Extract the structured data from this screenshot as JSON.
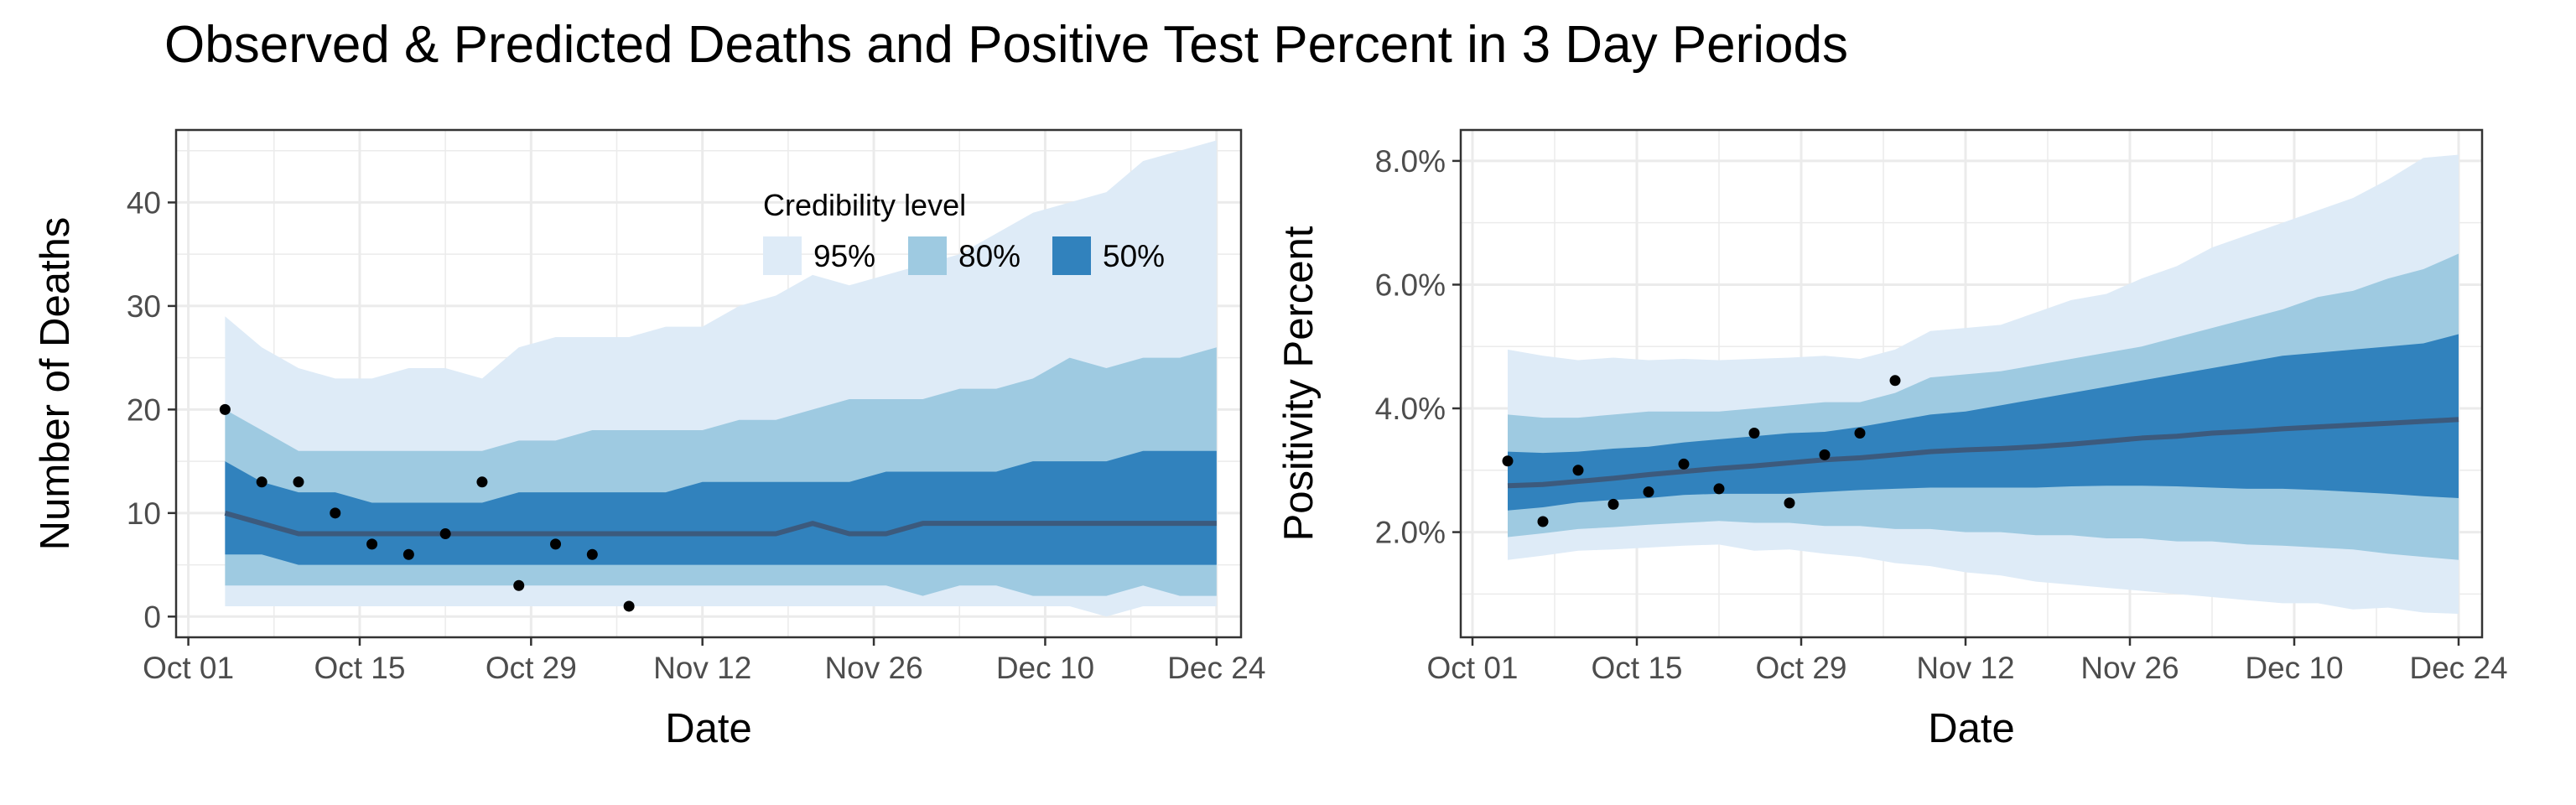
{
  "title": "Observed & Predicted Deaths and Positive Test Percent in 3 Day Periods",
  "colors": {
    "band_95": "#deebf7",
    "band_80": "#9ecae1",
    "band_50": "#3182bd",
    "median_line": "#3c5a7d",
    "points": "#000000",
    "grid": "#ebebeb",
    "panel_border": "#333333"
  },
  "legend": {
    "title": "Credibility level",
    "items": [
      {
        "label": "95%",
        "color": "#deebf7"
      },
      {
        "label": "80%",
        "color": "#9ecae1"
      },
      {
        "label": "50%",
        "color": "#3182bd"
      }
    ],
    "placement": "top-right inside left panel"
  },
  "chart_data": [
    {
      "type": "area",
      "xlabel": "Date",
      "ylabel": "Number of Deaths",
      "xlim": [
        "2020-09-30",
        "2020-12-26"
      ],
      "ylim": [
        -2,
        47
      ],
      "x_ticks": [
        "2020-10-01",
        "2020-10-15",
        "2020-10-29",
        "2020-11-12",
        "2020-11-26",
        "2020-12-10",
        "2020-12-24"
      ],
      "x_tick_labels": [
        "Oct 01",
        "Oct 15",
        "Oct 29",
        "Nov 12",
        "Nov 26",
        "Dec 10",
        "Dec 24"
      ],
      "y_ticks": [
        0,
        10,
        20,
        30,
        40
      ],
      "y_tick_labels": [
        "0",
        "10",
        "20",
        "30",
        "40"
      ],
      "grid": true,
      "x": [
        "2020-10-04",
        "2020-10-07",
        "2020-10-10",
        "2020-10-13",
        "2020-10-16",
        "2020-10-19",
        "2020-10-22",
        "2020-10-25",
        "2020-10-28",
        "2020-10-31",
        "2020-11-03",
        "2020-11-06",
        "2020-11-09",
        "2020-11-12",
        "2020-11-15",
        "2020-11-18",
        "2020-11-21",
        "2020-11-24",
        "2020-11-27",
        "2020-11-30",
        "2020-12-03",
        "2020-12-06",
        "2020-12-09",
        "2020-12-12",
        "2020-12-15",
        "2020-12-18",
        "2020-12-21",
        "2020-12-24"
      ],
      "bands": {
        "95": {
          "low": [
            1,
            1,
            1,
            1,
            1,
            1,
            1,
            1,
            1,
            1,
            1,
            1,
            1,
            1,
            1,
            1,
            1,
            1,
            1,
            1,
            1,
            1,
            1,
            1,
            0,
            1,
            1,
            1
          ],
          "high": [
            29,
            26,
            24,
            23,
            23,
            24,
            24,
            23,
            26,
            27,
            27,
            27,
            28,
            28,
            30,
            31,
            33,
            32,
            33,
            34,
            35,
            37,
            39,
            40,
            41,
            44,
            45,
            46
          ]
        },
        "80": {
          "low": [
            3,
            3,
            3,
            3,
            3,
            3,
            3,
            3,
            3,
            3,
            3,
            3,
            3,
            3,
            3,
            3,
            3,
            3,
            3,
            2,
            3,
            3,
            2,
            2,
            2,
            3,
            2,
            2
          ],
          "high": [
            20,
            18,
            16,
            16,
            16,
            16,
            16,
            16,
            17,
            17,
            18,
            18,
            18,
            18,
            19,
            19,
            20,
            21,
            21,
            21,
            22,
            22,
            23,
            25,
            24,
            25,
            25,
            26
          ]
        },
        "50": {
          "low": [
            6,
            6,
            5,
            5,
            5,
            5,
            5,
            5,
            5,
            5,
            5,
            5,
            5,
            5,
            5,
            5,
            5,
            5,
            5,
            5,
            5,
            5,
            5,
            5,
            5,
            5,
            5,
            5
          ],
          "high": [
            15,
            13,
            12,
            12,
            11,
            11,
            11,
            11,
            12,
            12,
            12,
            12,
            12,
            13,
            13,
            13,
            13,
            13,
            14,
            14,
            14,
            14,
            15,
            15,
            15,
            16,
            16,
            16
          ]
        }
      },
      "median": [
        10,
        9,
        8,
        8,
        8,
        8,
        8,
        8,
        8,
        8,
        8,
        8,
        8,
        8,
        8,
        8,
        9,
        8,
        8,
        9,
        9,
        9,
        9,
        9,
        9,
        9,
        9,
        9
      ],
      "observed": {
        "x": [
          "2020-10-04",
          "2020-10-07",
          "2020-10-10",
          "2020-10-13",
          "2020-10-16",
          "2020-10-19",
          "2020-10-22",
          "2020-10-25",
          "2020-10-28",
          "2020-10-31",
          "2020-11-03",
          "2020-11-06"
        ],
        "y": [
          20,
          13,
          13,
          10,
          7,
          6,
          8,
          13,
          3,
          7,
          6,
          1
        ]
      }
    },
    {
      "type": "area",
      "xlabel": "Date",
      "ylabel": "Positivity Percent",
      "xlim": [
        "2020-09-30",
        "2020-12-26"
      ],
      "ylim": [
        0.3,
        8.5
      ],
      "x_ticks": [
        "2020-10-01",
        "2020-10-15",
        "2020-10-29",
        "2020-11-12",
        "2020-11-26",
        "2020-12-10",
        "2020-12-24"
      ],
      "x_tick_labels": [
        "Oct 01",
        "Oct 15",
        "Oct 29",
        "Nov 12",
        "Nov 26",
        "Dec 10",
        "Dec 24"
      ],
      "y_ticks": [
        2,
        4,
        6,
        8
      ],
      "y_tick_labels": [
        "2.0%",
        "4.0%",
        "6.0%",
        "8.0%"
      ],
      "grid": true,
      "x": [
        "2020-10-04",
        "2020-10-07",
        "2020-10-10",
        "2020-10-13",
        "2020-10-16",
        "2020-10-19",
        "2020-10-22",
        "2020-10-25",
        "2020-10-28",
        "2020-10-31",
        "2020-11-03",
        "2020-11-06",
        "2020-11-09",
        "2020-11-12",
        "2020-11-15",
        "2020-11-18",
        "2020-11-21",
        "2020-11-24",
        "2020-11-27",
        "2020-11-30",
        "2020-12-03",
        "2020-12-06",
        "2020-12-09",
        "2020-12-12",
        "2020-12-15",
        "2020-12-18",
        "2020-12-21",
        "2020-12-24"
      ],
      "bands": {
        "95": {
          "low": [
            1.55,
            1.62,
            1.7,
            1.72,
            1.75,
            1.78,
            1.8,
            1.7,
            1.72,
            1.65,
            1.6,
            1.5,
            1.45,
            1.35,
            1.3,
            1.2,
            1.15,
            1.1,
            1.05,
            1.0,
            0.95,
            0.9,
            0.85,
            0.85,
            0.75,
            0.78,
            0.7,
            0.68
          ],
          "high": [
            4.95,
            4.85,
            4.78,
            4.82,
            4.78,
            4.8,
            4.78,
            4.8,
            4.82,
            4.85,
            4.8,
            4.95,
            5.25,
            5.3,
            5.35,
            5.55,
            5.75,
            5.85,
            6.1,
            6.3,
            6.6,
            6.8,
            7.0,
            7.2,
            7.4,
            7.7,
            8.05,
            8.1
          ]
        },
        "80": {
          "low": [
            1.92,
            1.98,
            2.05,
            2.08,
            2.12,
            2.15,
            2.18,
            2.15,
            2.15,
            2.1,
            2.1,
            2.05,
            2.05,
            2.0,
            2.0,
            1.95,
            1.95,
            1.9,
            1.9,
            1.85,
            1.85,
            1.8,
            1.78,
            1.75,
            1.72,
            1.65,
            1.6,
            1.55
          ],
          "high": [
            3.9,
            3.85,
            3.85,
            3.9,
            3.95,
            3.95,
            3.95,
            4.0,
            4.05,
            4.1,
            4.1,
            4.25,
            4.5,
            4.55,
            4.6,
            4.7,
            4.8,
            4.9,
            5.0,
            5.15,
            5.3,
            5.45,
            5.6,
            5.8,
            5.9,
            6.1,
            6.25,
            6.5
          ]
        },
        "50": {
          "low": [
            2.35,
            2.4,
            2.48,
            2.52,
            2.55,
            2.6,
            2.62,
            2.62,
            2.62,
            2.65,
            2.68,
            2.7,
            2.72,
            2.72,
            2.72,
            2.72,
            2.74,
            2.75,
            2.75,
            2.74,
            2.72,
            2.7,
            2.7,
            2.68,
            2.65,
            2.62,
            2.58,
            2.55
          ],
          "high": [
            3.3,
            3.28,
            3.3,
            3.35,
            3.38,
            3.45,
            3.5,
            3.55,
            3.6,
            3.62,
            3.7,
            3.8,
            3.9,
            3.95,
            4.05,
            4.15,
            4.25,
            4.35,
            4.45,
            4.55,
            4.65,
            4.75,
            4.85,
            4.9,
            4.95,
            5.0,
            5.05,
            5.2
          ]
        }
      },
      "median": [
        2.75,
        2.77,
        2.82,
        2.87,
        2.93,
        2.98,
        3.03,
        3.07,
        3.12,
        3.17,
        3.2,
        3.25,
        3.3,
        3.33,
        3.35,
        3.38,
        3.42,
        3.47,
        3.52,
        3.55,
        3.6,
        3.63,
        3.67,
        3.7,
        3.73,
        3.76,
        3.79,
        3.82
      ],
      "observed": {
        "x": [
          "2020-10-04",
          "2020-10-07",
          "2020-10-10",
          "2020-10-13",
          "2020-10-16",
          "2020-10-19",
          "2020-10-22",
          "2020-10-25",
          "2020-10-28",
          "2020-10-31",
          "2020-11-03",
          "2020-11-06"
        ],
        "y": [
          3.15,
          2.17,
          3.0,
          2.45,
          2.65,
          3.1,
          2.7,
          3.6,
          2.47,
          3.25,
          3.6,
          4.45
        ]
      }
    }
  ]
}
